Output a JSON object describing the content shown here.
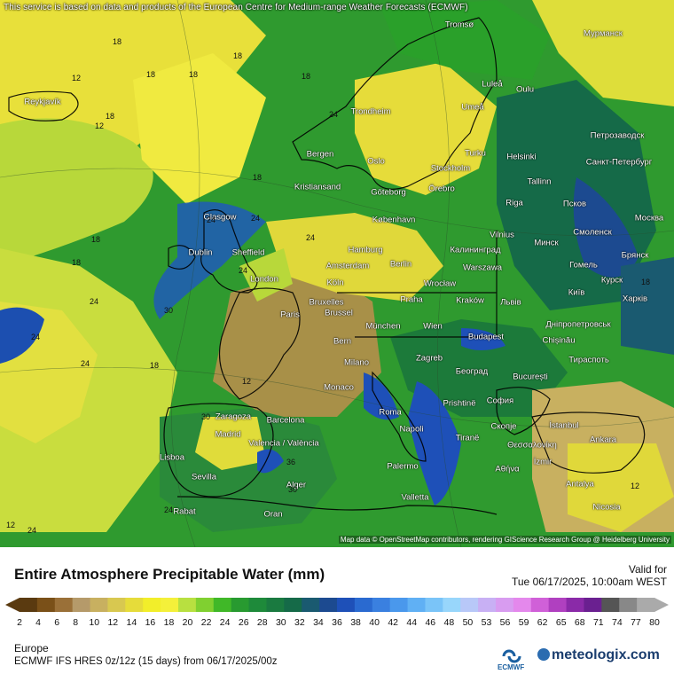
{
  "map": {
    "attribution_top": "This service is based on data and products of the European Centre for Medium-range Weather Forecasts (ECMWF)",
    "attribution_bottom": "Map data © OpenStreetMap contributors, rendering GIScience Research Group @ Heidelberg University",
    "cities": [
      "Tromsø",
      "Мурманск",
      "Luleå",
      "Oulu",
      "Umeå",
      "Reykjavík",
      "Trondheim",
      "Петрозаводск",
      "Turku",
      "Helsinki",
      "Санкт-Петербург",
      "Bergen",
      "Oslo",
      "Stockholm",
      "Tallinn",
      "Kristiansand",
      "Göteborg",
      "Örebro",
      "Riga",
      "Псков",
      "Glasgow",
      "København",
      "Москва",
      "Vilnius",
      "Смоленск",
      "Минск",
      "Брянск",
      "Dublin",
      "Sheffield",
      "Hamburg",
      "Калининград",
      "Гомель",
      "London",
      "Amsterdam",
      "Berlin",
      "Warszawa",
      "Курск",
      "Köln",
      "Wrocław",
      "Київ",
      "Харків",
      "Bruxelles",
      "Brussel",
      "Paris",
      "Praha",
      "Kraków",
      "Львів",
      "Дніпропетровськ",
      "München",
      "Wien",
      "Budapest",
      "Chișinău",
      "Bern",
      "Milano",
      "Zagreb",
      "Београд",
      "Тираспоть",
      "București",
      "Monaco",
      "Roma",
      "Prishtinë",
      "София",
      "Zaragoza",
      "Barcelona",
      "Madrid",
      "Napoli",
      "Tiranë",
      "Скопје",
      "İstanbul",
      "Ankara",
      "Valencia / València",
      "Θεσσαλονίκη",
      "Lisboa",
      "Sevilla",
      "Palermo",
      "Αθήνα",
      "İzmir",
      "Antalya",
      "Alger",
      "Valletta",
      "Rabat",
      "Oran",
      "Nicosia"
    ],
    "contour_values": [
      "12",
      "18",
      "18",
      "18",
      "18",
      "18",
      "12",
      "18",
      "18",
      "24",
      "24",
      "24",
      "30",
      "24",
      "24",
      "24",
      "18",
      "18",
      "12",
      "24",
      "30",
      "36",
      "24",
      "18",
      "24",
      "30",
      "12",
      "24",
      "12",
      "18"
    ]
  },
  "legend": {
    "title": "Entire Atmosphere Precipitable Water (mm)",
    "valid_label": "Valid for",
    "valid_time": "Tue 06/17/2025, 10:00am WEST",
    "ticks": [
      "2",
      "4",
      "6",
      "8",
      "10",
      "12",
      "14",
      "16",
      "18",
      "20",
      "22",
      "24",
      "26",
      "28",
      "30",
      "32",
      "34",
      "36",
      "38",
      "40",
      "42",
      "44",
      "46",
      "48",
      "50",
      "53",
      "56",
      "59",
      "62",
      "65",
      "68",
      "71",
      "74",
      "77",
      "80"
    ],
    "colors": [
      "#5a3a10",
      "#7a5018",
      "#9a7038",
      "#b59a6a",
      "#c8b060",
      "#d8c850",
      "#e6dc3a",
      "#f2ee2a",
      "#f4f03a",
      "#b8e040",
      "#80d030",
      "#40b828",
      "#289a30",
      "#1e8a3a",
      "#1a7a40",
      "#156a48",
      "#1a5a70",
      "#1c4a90",
      "#1e50b8",
      "#2a6ad0",
      "#3a80e0",
      "#4a98ec",
      "#60b0f4",
      "#7ac4f8",
      "#98d6fb",
      "#b8c8f8",
      "#c8b0f4",
      "#d89cf0",
      "#e488ec",
      "#d060d8",
      "#b040c0",
      "#8a2aa8",
      "#6a2090",
      "#555555",
      "#888888",
      "#aaaaaa"
    ],
    "region": "Europe",
    "model": "ECMWF IFS HRES 0z/12z (15 days) from 06/17/2025/00z",
    "ecmwf_label": "ECMWF",
    "brand": "meteologix.com"
  }
}
